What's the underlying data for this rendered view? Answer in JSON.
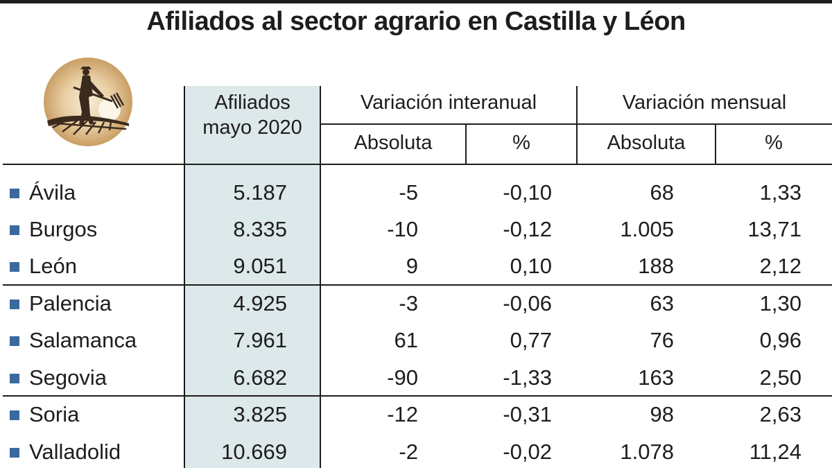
{
  "title": "Afiliados al sector agrario en Castilla y Léon",
  "header": {
    "afiliados": "Afiliados\nmayo 2020",
    "afiliados_line1": "Afiliados",
    "afiliados_line2": "mayo 2020",
    "variacion_interanual": "Variación interanual",
    "variacion_mensual": "Variación mensual",
    "absoluta_1": "Absoluta",
    "pct_1": "%",
    "absoluta_2": "Absoluta",
    "pct_2": "%"
  },
  "logo": {
    "icon": "farmer-with-pitchfork-icon"
  },
  "colors": {
    "bullet": "#3a6a9e",
    "shade": "#dce8e9",
    "logo_bg": "#d9b98a"
  },
  "chart_data": {
    "type": "table",
    "columns": [
      "Afiliados mayo 2020",
      "Variación interanual Absoluta",
      "Variación interanual %",
      "Variación mensual Absoluta",
      "Variación mensual %"
    ],
    "rows": [
      {
        "province": "Ávila",
        "afiliados": "5.187",
        "inter_abs": "-5",
        "inter_pct": "-0,10",
        "mens_abs": "68",
        "mens_pct": "1,33"
      },
      {
        "province": "Burgos",
        "afiliados": "8.335",
        "inter_abs": "-10",
        "inter_pct": "-0,12",
        "mens_abs": "1.005",
        "mens_pct": "13,71"
      },
      {
        "province": "León",
        "afiliados": "9.051",
        "inter_abs": "9",
        "inter_pct": "0,10",
        "mens_abs": "188",
        "mens_pct": "2,12"
      },
      {
        "province": "Palencia",
        "afiliados": "4.925",
        "inter_abs": "-3",
        "inter_pct": "-0,06",
        "mens_abs": "63",
        "mens_pct": "1,30"
      },
      {
        "province": "Salamanca",
        "afiliados": "7.961",
        "inter_abs": "61",
        "inter_pct": "0,77",
        "mens_abs": "76",
        "mens_pct": "0,96"
      },
      {
        "province": "Segovia",
        "afiliados": "6.682",
        "inter_abs": "-90",
        "inter_pct": "-1,33",
        "mens_abs": "163",
        "mens_pct": "2,50"
      },
      {
        "province": "Soria",
        "afiliados": "3.825",
        "inter_abs": "-12",
        "inter_pct": "-0,31",
        "mens_abs": "98",
        "mens_pct": "2,63"
      },
      {
        "province": "Valladolid",
        "afiliados": "10.669",
        "inter_abs": "-2",
        "inter_pct": "-0,02",
        "mens_abs": "1.078",
        "mens_pct": "11,24"
      }
    ]
  }
}
